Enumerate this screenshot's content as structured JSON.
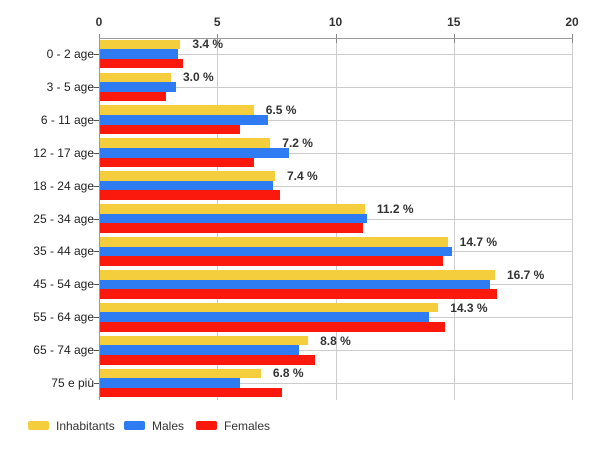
{
  "chart_data": {
    "type": "bar",
    "orientation": "horizontal",
    "title": "",
    "xlabel": "",
    "ylabel": "",
    "xlim": [
      0,
      20
    ],
    "x_ticks": [
      0,
      5,
      10,
      15,
      20
    ],
    "grid": true,
    "legend_position": "bottom-left",
    "categories": [
      "0 - 2 age",
      "3 - 5 age",
      "6 - 11 age",
      "12 - 17 age",
      "18 - 24 age",
      "25 - 34 age",
      "35 - 44 age",
      "45 - 54 age",
      "55 - 64 age",
      "65 - 74 age",
      "75 e più"
    ],
    "series": [
      {
        "name": "Inhabitants",
        "color": "#F5CE3E",
        "values": [
          3.4,
          3.0,
          6.5,
          7.2,
          7.4,
          11.2,
          14.7,
          16.7,
          14.3,
          8.8,
          6.8
        ]
      },
      {
        "name": "Males",
        "color": "#2E7BF2",
        "values": [
          3.3,
          3.2,
          7.1,
          8.0,
          7.3,
          11.3,
          14.9,
          16.5,
          13.9,
          8.4,
          5.9
        ]
      },
      {
        "name": "Females",
        "color": "#FA190C",
        "values": [
          3.5,
          2.8,
          5.9,
          6.5,
          7.6,
          11.1,
          14.5,
          16.8,
          14.6,
          9.1,
          7.7
        ]
      }
    ],
    "value_labels": [
      "3.4 %",
      "3.0 %",
      "6.5 %",
      "7.2 %",
      "7.4 %",
      "11.2 %",
      "14.7 %",
      "16.7 %",
      "14.3 %",
      "8.8 %",
      "6.8 %"
    ],
    "colors": {
      "grid": "#cccccc",
      "axis": "#9a9a9a",
      "text": "#333333",
      "background": "#ffffff"
    }
  }
}
